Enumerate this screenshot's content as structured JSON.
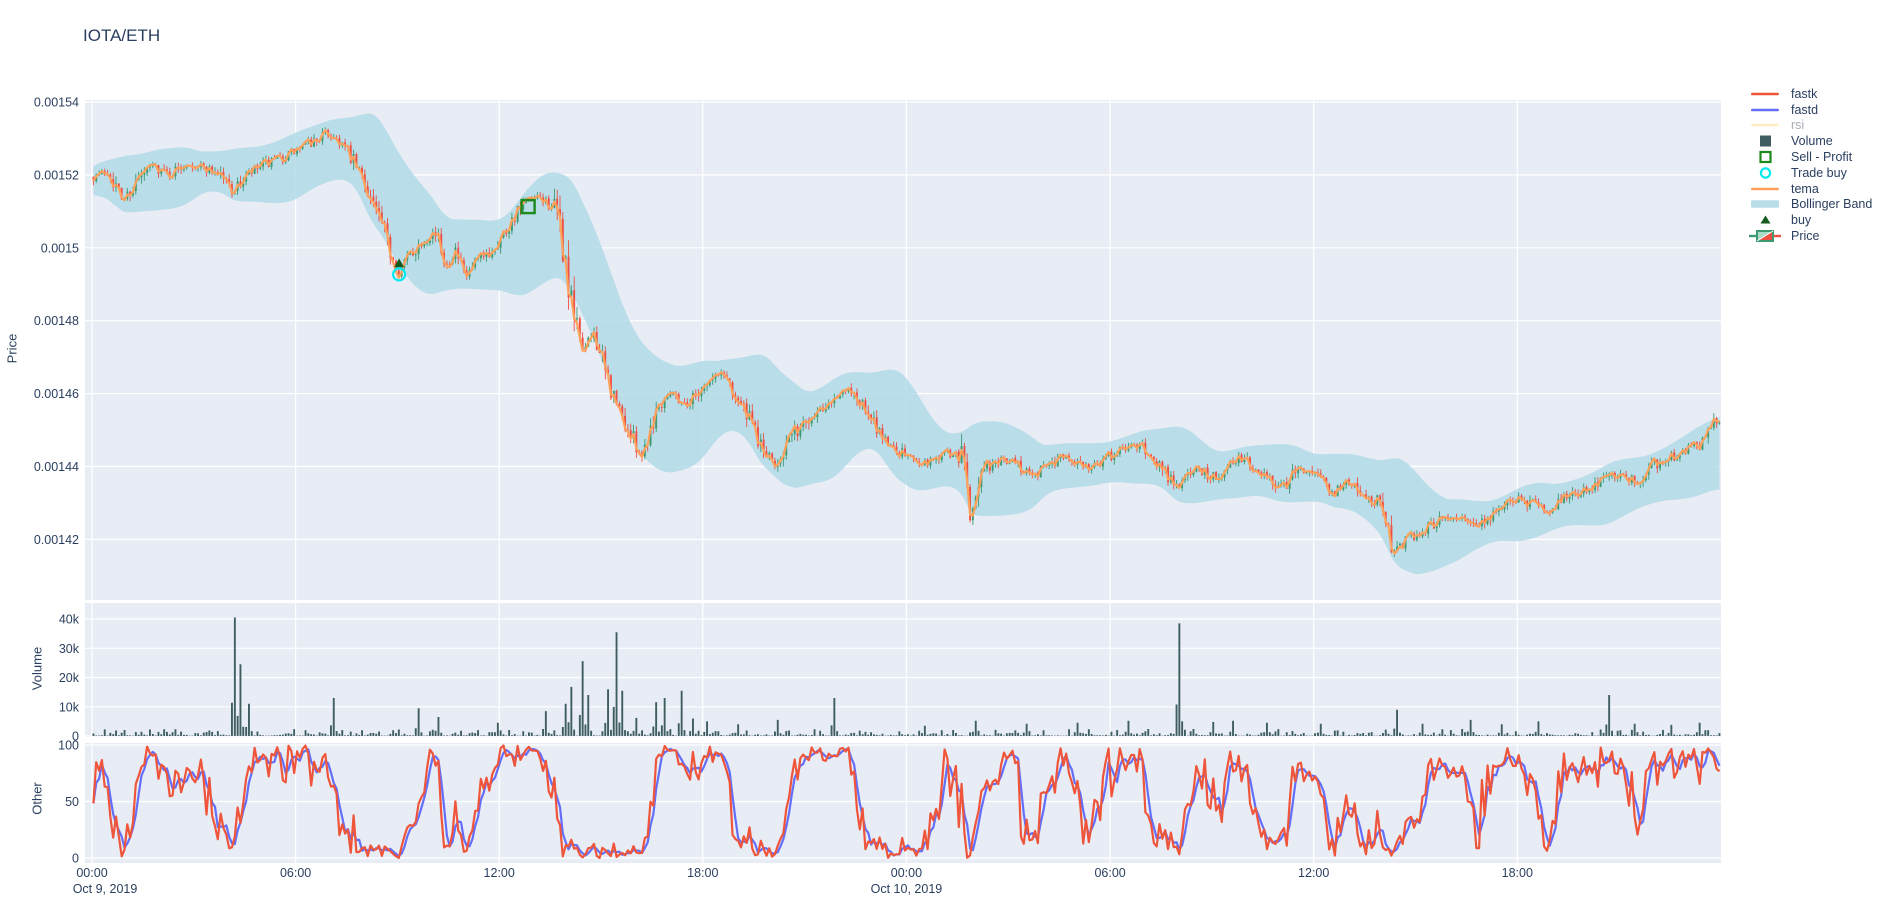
{
  "title": "IOTA/ETH",
  "legend": {
    "items": [
      {
        "id": "fastk",
        "label": "fastk",
        "marker": "line",
        "color": "#EF553B",
        "muted": false
      },
      {
        "id": "fastd",
        "label": "fastd",
        "marker": "line",
        "color": "#636EFA",
        "muted": false
      },
      {
        "id": "rsi",
        "label": "rsi",
        "marker": "line",
        "color": "#FECB52",
        "muted": true
      },
      {
        "id": "volume",
        "label": "Volume",
        "marker": "square_filled",
        "color": "#3F5E62",
        "muted": false
      },
      {
        "id": "sell_profit",
        "label": "Sell - Profit",
        "marker": "square_open",
        "color": "#1B8A1B",
        "muted": false
      },
      {
        "id": "trade_buy",
        "label": "Trade buy",
        "marker": "circle_open",
        "color": "#00E8F0",
        "muted": false
      },
      {
        "id": "tema",
        "label": "tema",
        "marker": "line",
        "color": "#FFA15A",
        "muted": false
      },
      {
        "id": "bollinger",
        "label": "Bollinger Band",
        "marker": "band",
        "color": "#ADD8E6",
        "muted": false
      },
      {
        "id": "buy",
        "label": "buy",
        "marker": "triangle_up",
        "color": "#155B1F",
        "muted": false
      },
      {
        "id": "price",
        "label": "Price",
        "marker": "candlestick",
        "color": "#3D9970",
        "color2": "#EF4E43",
        "muted": false
      }
    ]
  },
  "axes": {
    "x": {
      "tick_labels": [
        "00:00",
        "06:00",
        "12:00",
        "18:00",
        "00:00",
        "06:00",
        "12:00",
        "18:00"
      ],
      "date_labels": [
        {
          "text": "Oct 9, 2019",
          "tick_index": 0
        },
        {
          "text": "Oct 10, 2019",
          "tick_index": 4
        }
      ],
      "range_hours": [
        0,
        48
      ]
    },
    "price": {
      "title": "Price",
      "tick_labels": [
        "0.00154",
        "0.00152",
        "0.0015",
        "0.00148",
        "0.00146",
        "0.00144",
        "0.00142"
      ],
      "tick_values": [
        0.00154,
        0.00152,
        0.0015,
        0.00148,
        0.00146,
        0.00144,
        0.00142
      ],
      "range": [
        0.0014033,
        0.0015406
      ]
    },
    "volume": {
      "title": "Volume",
      "tick_labels": [
        "40k",
        "30k",
        "20k",
        "10k",
        "0"
      ],
      "tick_values": [
        40000,
        30000,
        20000,
        10000,
        0
      ],
      "range": [
        0,
        45800
      ]
    },
    "other": {
      "title": "Other",
      "tick_labels": [
        "100",
        "50",
        "0"
      ],
      "tick_values": [
        100,
        50,
        0
      ],
      "range": [
        0,
        100
      ]
    }
  },
  "chart_data": [
    {
      "type": "candlestick",
      "name": "Price",
      "pair": "IOTA/ETH",
      "interval_minutes": 5,
      "x_start": "Oct 9, 2019 00:00",
      "x_end": "Oct 11, 2019 00:00",
      "ylim": [
        0.0014033,
        0.0015406
      ],
      "price_path_keypoints": {
        "hours": [
          0,
          0.5,
          0.9,
          1.3,
          1.8,
          2.3,
          2.8,
          3.3,
          3.8,
          4.15,
          4.5,
          5,
          5.5,
          6,
          6.5,
          6.9,
          7.3,
          7.7,
          8.1,
          8.5,
          8.8,
          9.05,
          9.4,
          9.8,
          10.1,
          10.45,
          10.7,
          11,
          11.3,
          11.7,
          12.1,
          12.5,
          12.85,
          13.2,
          13.6,
          13.8,
          14.15,
          14.5,
          14.8,
          15.1,
          15.45,
          15.8,
          16.2,
          16.6,
          17,
          17.5,
          18,
          18.6,
          19.2,
          19.7,
          20.1,
          20.5,
          21.1,
          21.8,
          22.4,
          23,
          23.5,
          24,
          24.6,
          25.2,
          25.75,
          25.85,
          26.2,
          27,
          27.8,
          28.6,
          29.4,
          30.2,
          30.9,
          31.5,
          32,
          32.5,
          33.1,
          33.8,
          34.5,
          35.1,
          35.6,
          36.1,
          36.6,
          37.1,
          37.6,
          38.05,
          38.35,
          38.9,
          39.5,
          40.1,
          40.9,
          41.5,
          42.1,
          42.9,
          43.5,
          44.1,
          44.9,
          45.5,
          46.1,
          46.9,
          47.5,
          47.85,
          48
        ],
        "price": [
          0.0015195,
          0.001521,
          0.001513,
          0.001518,
          0.0015225,
          0.00152,
          0.0015235,
          0.001522,
          0.0015205,
          0.0015155,
          0.001519,
          0.0015225,
          0.001524,
          0.0015265,
          0.001529,
          0.0015315,
          0.0015295,
          0.0015235,
          0.001517,
          0.001507,
          0.001499,
          0.0014935,
          0.0014985,
          0.0015025,
          0.0015045,
          0.0014955,
          0.0014995,
          0.0014915,
          0.0014955,
          0.0014985,
          0.0015035,
          0.0015095,
          0.0015125,
          0.0015135,
          0.0015115,
          0.001505,
          0.001482,
          0.001472,
          0.001477,
          0.001466,
          0.001457,
          0.00145,
          0.001443,
          0.001455,
          0.001461,
          0.001457,
          0.001462,
          0.001466,
          0.001456,
          0.001446,
          0.00144,
          0.001447,
          0.001453,
          0.001459,
          0.001461,
          0.001452,
          0.001446,
          0.001443,
          0.001441,
          0.001444,
          0.001442,
          0.001424,
          0.001439,
          0.001442,
          0.001438,
          0.001443,
          0.00144,
          0.001444,
          0.001446,
          0.00144,
          0.001434,
          0.00144,
          0.001437,
          0.001443,
          0.001438,
          0.001434,
          0.00144,
          0.001437,
          0.001433,
          0.001436,
          0.001431,
          0.00143,
          0.001417,
          0.001421,
          0.001424,
          0.001427,
          0.001424,
          0.001429,
          0.001431,
          0.001428,
          0.001432,
          0.001434,
          0.001438,
          0.001436,
          0.001441,
          0.001444,
          0.001447,
          0.001453,
          0.001451
        ]
      },
      "overlays": [
        {
          "name": "tema",
          "type": "line",
          "color": "#FFA15A"
        },
        {
          "name": "Bollinger Band",
          "type": "band",
          "color": "#ADD8E6"
        }
      ],
      "trade_markers": [
        {
          "name": "buy",
          "symbol": "triangle_up",
          "hour": 9.05,
          "price": 0.0014957
        },
        {
          "name": "Trade buy",
          "symbol": "circle_open",
          "hour": 9.05,
          "price": 0.0014927
        },
        {
          "name": "Sell - Profit",
          "symbol": "square_open",
          "hour": 12.85,
          "price": 0.0015113
        }
      ]
    },
    {
      "type": "bar",
      "name": "Volume",
      "color": "#3F5E62",
      "ylim": [
        0,
        45800
      ],
      "base_range": [
        150,
        2400
      ],
      "spikes": [
        {
          "hour": 4.15,
          "value": 40500
        },
        {
          "hour": 4.35,
          "value": 24500
        },
        {
          "hour": 4.6,
          "value": 11000
        },
        {
          "hour": 7.05,
          "value": 13000
        },
        {
          "hour": 9.6,
          "value": 9500
        },
        {
          "hour": 10.2,
          "value": 6500
        },
        {
          "hour": 11.9,
          "value": 4500
        },
        {
          "hour": 13.3,
          "value": 8500
        },
        {
          "hour": 13.9,
          "value": 11000
        },
        {
          "hour": 14.05,
          "value": 16800
        },
        {
          "hour": 14.4,
          "value": 25600
        },
        {
          "hour": 14.55,
          "value": 14000
        },
        {
          "hour": 15.15,
          "value": 16000
        },
        {
          "hour": 15.4,
          "value": 35500
        },
        {
          "hour": 15.55,
          "value": 15500
        },
        {
          "hour": 16.0,
          "value": 6200
        },
        {
          "hour": 16.6,
          "value": 11600
        },
        {
          "hour": 16.85,
          "value": 13000
        },
        {
          "hour": 17.3,
          "value": 15500
        },
        {
          "hour": 17.7,
          "value": 6000
        },
        {
          "hour": 18.1,
          "value": 5000
        },
        {
          "hour": 19.0,
          "value": 4000
        },
        {
          "hour": 20.2,
          "value": 5500
        },
        {
          "hour": 21.8,
          "value": 13000
        },
        {
          "hour": 24.5,
          "value": 3500
        },
        {
          "hour": 26.0,
          "value": 5200
        },
        {
          "hour": 27.5,
          "value": 4200
        },
        {
          "hour": 29.0,
          "value": 4500
        },
        {
          "hour": 30.5,
          "value": 5200
        },
        {
          "hour": 32.0,
          "value": 38500
        },
        {
          "hour": 33.0,
          "value": 4800
        },
        {
          "hour": 33.6,
          "value": 5200
        },
        {
          "hour": 34.6,
          "value": 4500
        },
        {
          "hour": 36.2,
          "value": 4200
        },
        {
          "hour": 38.4,
          "value": 9000
        },
        {
          "hour": 39.2,
          "value": 4200
        },
        {
          "hour": 40.6,
          "value": 5500
        },
        {
          "hour": 41.5,
          "value": 4000
        },
        {
          "hour": 42.6,
          "value": 5000
        },
        {
          "hour": 44.7,
          "value": 14000
        },
        {
          "hour": 45.4,
          "value": 4200
        },
        {
          "hour": 46.5,
          "value": 3800
        },
        {
          "hour": 47.3,
          "value": 4500
        }
      ]
    },
    {
      "type": "line",
      "name": "Other",
      "ylim": [
        0,
        100
      ],
      "series": [
        {
          "name": "fastk",
          "color": "#EF553B",
          "kind": "stochastic_k",
          "window": 14,
          "visible": true
        },
        {
          "name": "fastd",
          "color": "#636EFA",
          "kind": "sma_of_fastk",
          "window": 3,
          "visible": true
        },
        {
          "name": "rsi",
          "color": "#FECB52",
          "kind": "rsi",
          "visible": false
        }
      ]
    }
  ],
  "style": {
    "paper_bg": "#FFFFFF",
    "plot_bg": "#E8EDF5",
    "grid": "#FFFFFF",
    "text": "#2A3F5F",
    "muted_text": "#A9AFB8",
    "up": "#3D9970",
    "down": "#EF4E43",
    "band_fill": "#ADD8E6",
    "tema": "#FFA15A",
    "fastk": "#EF553B",
    "fastd": "#636EFA",
    "volume_bar": "#3F5E62",
    "buy_marker": "#155B1F",
    "trade_buy_marker": "#00E8F0",
    "sell_profit_marker": "#1B8A1B",
    "seed": 7
  }
}
